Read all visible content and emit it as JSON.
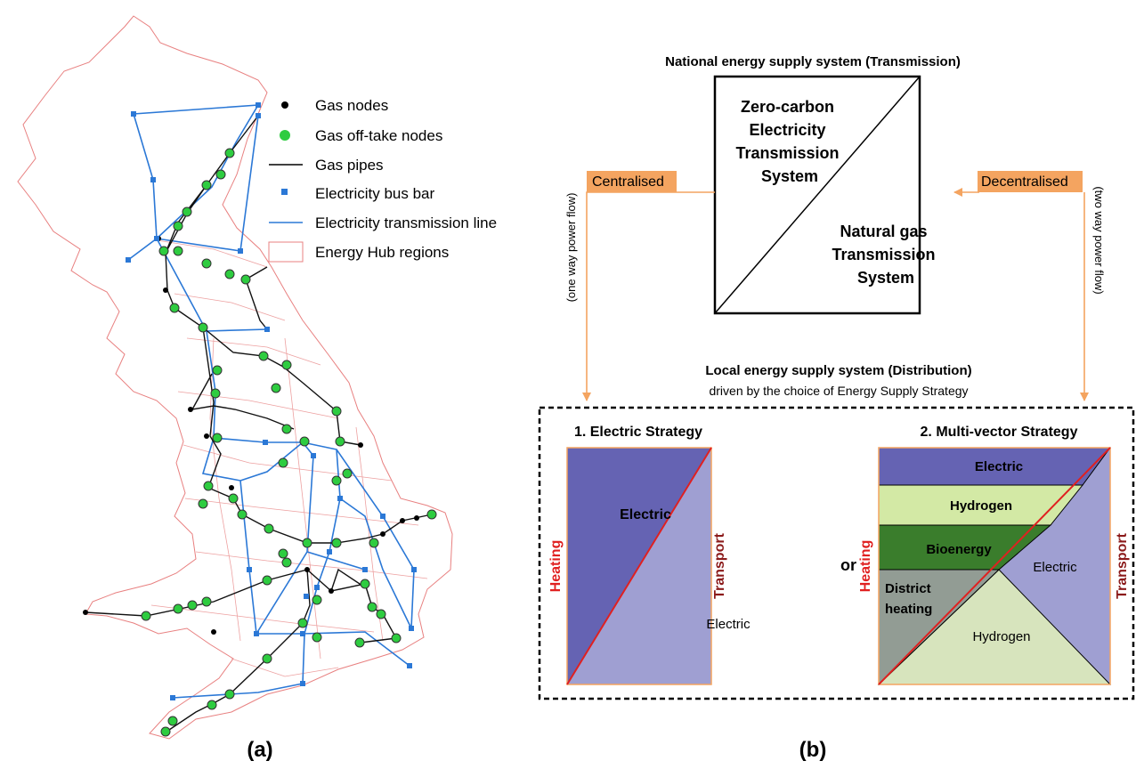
{
  "panel_a": {
    "caption": "(a)",
    "legend": [
      {
        "label": "Gas nodes",
        "symbol": "black-dot"
      },
      {
        "label": "Gas off-take nodes",
        "symbol": "green-dot"
      },
      {
        "label": "Gas pipes",
        "symbol": "black-line"
      },
      {
        "label": "Electricity bus bar",
        "symbol": "blue-square"
      },
      {
        "label": "Electricity transmission line",
        "symbol": "blue-line"
      },
      {
        "label": "Energy Hub regions",
        "symbol": "red-outline-box"
      }
    ]
  },
  "panel_b": {
    "caption": "(b)",
    "national_title": "National energy supply system (Transmission)",
    "national_box": {
      "top_text": [
        "Zero-carbon",
        "Electricity",
        "Transmission",
        "System"
      ],
      "bottom_text": [
        "Natural gas",
        "Transmission",
        "System"
      ]
    },
    "centralised_label": "Centralised",
    "decentralised_label": "Decentralised",
    "one_way_label": "(one way power flow)",
    "two_way_label": "(two way power flow)",
    "local_title": "Local energy supply system (Distribution)",
    "local_subtitle": "driven by the choice of Energy Supply Strategy",
    "or_label": "or",
    "strategy1": {
      "title": "1. Electric Strategy",
      "heating_axis": "Heating",
      "transport_axis": "Transport",
      "heating_region": "Electric",
      "transport_region": "Electric"
    },
    "strategy2": {
      "title": "2. Multi-vector Strategy",
      "heating_axis": "Heating",
      "transport_axis": "Transport",
      "bands": [
        "Electric",
        "Hydrogen",
        "Bioenergy",
        "District heating"
      ],
      "district_lines": [
        "District",
        "heating"
      ],
      "transport_electric": "Electric",
      "transport_hydrogen": "Hydrogen"
    },
    "colors": {
      "electric_dark": "#6563b3",
      "electric_light": "#9f9fd2",
      "hydrogen_band": "#d3e9a5",
      "hydrogen_light": "#d7e4bd",
      "bioenergy": "#3a7d2c",
      "district": "#929c94",
      "orange": "#f4a460",
      "axis_red": "#e02020",
      "transport_maroon": "#8b1a1a"
    }
  }
}
